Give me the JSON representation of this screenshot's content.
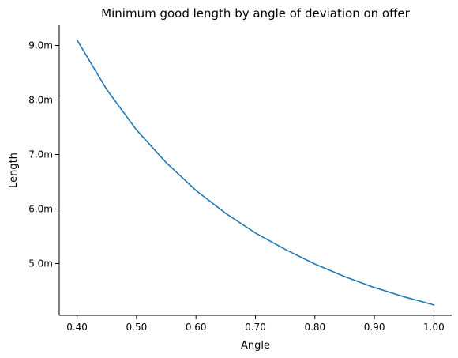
{
  "chart_data": {
    "type": "line",
    "title": "Minimum good length by angle of deviation on offer",
    "xlabel": "Angle",
    "ylabel": "Length",
    "xlim": [
      0.37,
      1.03
    ],
    "ylim": [
      4.05,
      9.37
    ],
    "grid": false,
    "x_ticks": [
      0.4,
      0.5,
      0.6,
      0.7,
      0.8,
      0.9,
      1.0
    ],
    "x_tick_labels": [
      "0.40",
      "0.50",
      "0.60",
      "0.70",
      "0.80",
      "0.90",
      "1.00"
    ],
    "y_ticks": [
      5.0,
      6.0,
      7.0,
      8.0,
      9.0
    ],
    "y_tick_labels": [
      "5.0m",
      "6.0m",
      "7.0m",
      "8.0m",
      "9.0m"
    ],
    "series": [
      {
        "color": "#1f77b4",
        "x": [
          0.4,
          0.45,
          0.5,
          0.55,
          0.6,
          0.65,
          0.7,
          0.75,
          0.8,
          0.85,
          0.9,
          0.95,
          1.0
        ],
        "y": [
          9.1,
          8.19,
          7.45,
          6.85,
          6.34,
          5.92,
          5.56,
          5.26,
          4.99,
          4.76,
          4.56,
          4.39,
          4.24
        ]
      }
    ]
  }
}
